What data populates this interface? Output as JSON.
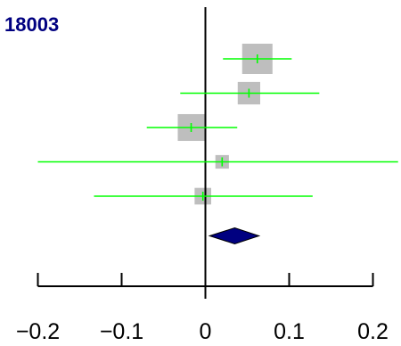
{
  "chart_data": {
    "type": "forest",
    "title": "18003",
    "xlim": [
      -0.2,
      0.23
    ],
    "x_ticks": [
      -0.2,
      -0.1,
      0,
      0.1,
      0.2
    ],
    "x_tick_labels": [
      "−0.2",
      "−0.1",
      "0",
      "0.1",
      "0.2"
    ],
    "reference_line": 0,
    "studies": [
      {
        "estimate": 0.062,
        "lower": 0.021,
        "upper": 0.103,
        "weight": 1.0
      },
      {
        "estimate": 0.052,
        "lower": -0.03,
        "upper": 0.136,
        "weight": 0.55
      },
      {
        "estimate": -0.017,
        "lower": -0.07,
        "upper": 0.038,
        "weight": 0.78
      },
      {
        "estimate": 0.02,
        "lower": -0.2,
        "upper": 0.23,
        "weight": 0.2
      },
      {
        "estimate": -0.003,
        "lower": -0.133,
        "upper": 0.128,
        "weight": 0.3
      }
    ],
    "summary": {
      "estimate": 0.035,
      "lower": 0.005,
      "upper": 0.064
    },
    "colors": {
      "ci_line": "#00ff00",
      "box": "#bebebe",
      "summary": "#000080",
      "reference": "#000000",
      "title": "#000080"
    }
  }
}
